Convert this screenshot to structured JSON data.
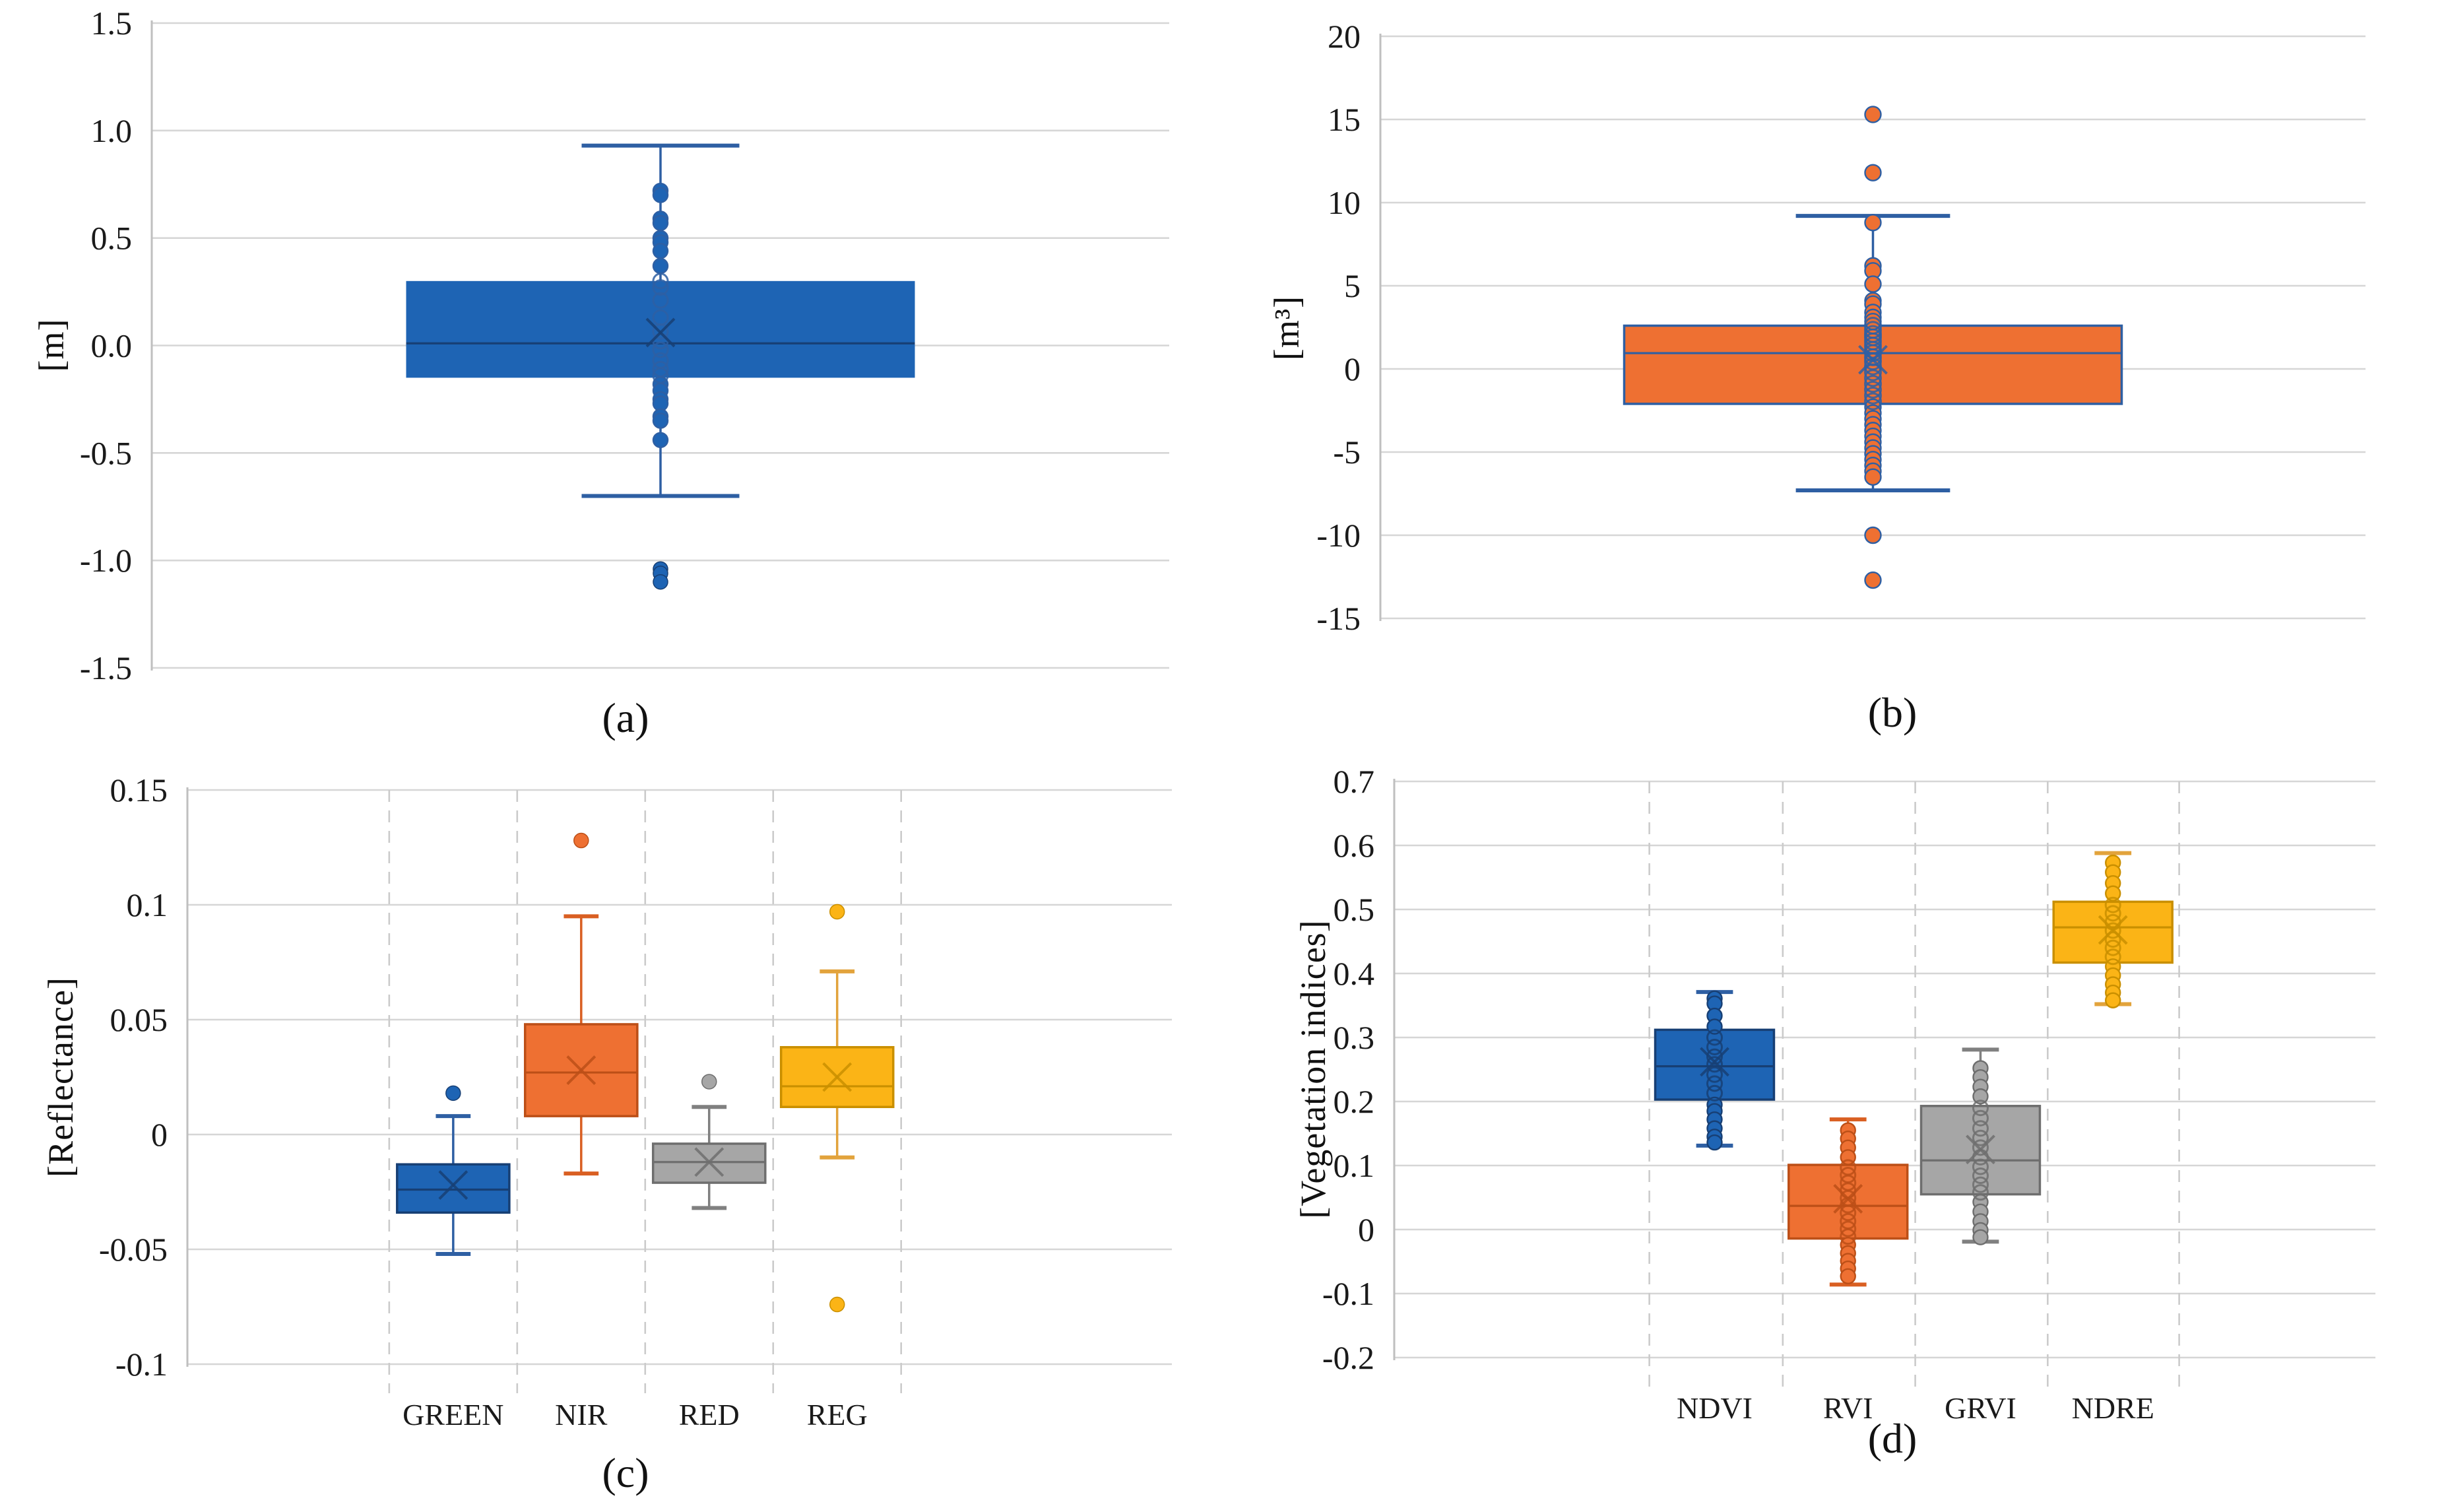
{
  "colors": {
    "blue": {
      "fill": "#1E64B4",
      "dark": "#173F74",
      "whisker": "#2E5FA3"
    },
    "orange": {
      "fill": "#EE7032",
      "dark": "#BC4F17",
      "whisker": "#D95F22"
    },
    "gray": {
      "fill": "#A6A6A6",
      "dark": "#6E6E6E",
      "whisker": "#808080"
    },
    "gold": {
      "fill": "#FBB416",
      "dark": "#C98F00",
      "whisker": "#E2A33C"
    },
    "gridline": "#D6D6D6",
    "axis_line": "#BFBFBF",
    "dashed_gridline": "#CBCBCB",
    "text": "#1A1A1A"
  },
  "chart_data": [
    {
      "type": "box",
      "panel": "a",
      "caption": "(a)",
      "ylabel": "[m]",
      "ylim": [
        -1.5,
        1.5
      ],
      "ytick_step": 0.5,
      "ytick_labels": [
        "1.5",
        "1.0",
        "0.5",
        "0.0",
        "-0.5",
        "-1.0",
        "-1.5"
      ],
      "grid": "horizontal",
      "legend": "none",
      "categories": [],
      "series": [
        {
          "name": "",
          "color": "blue",
          "whisker_color": "blue-ab",
          "box": {
            "q1": -0.15,
            "q3": 0.3,
            "median": 0.01,
            "mean": 0.06,
            "whisker_low": -0.7,
            "whisker_high": 0.93
          },
          "outliers": [
            -1.04,
            -1.06,
            -1.1
          ],
          "points": {
            "above": [
              0.72,
              0.7,
              0.59,
              0.57,
              0.5,
              0.48,
              0.44,
              0.37
            ],
            "inside": [
              0.3,
              0.27,
              0.21,
              0.13,
              0.065,
              0.02,
              -0.02,
              -0.07,
              -0.11,
              -0.14
            ],
            "below": [
              -0.18,
              -0.21,
              -0.25,
              -0.27,
              -0.33,
              -0.35,
              -0.44
            ]
          }
        }
      ]
    },
    {
      "type": "box",
      "panel": "b",
      "caption": "(b)",
      "ylabel": "[m³]",
      "ylim": [
        -15,
        20
      ],
      "ytick_step": 5,
      "ytick_labels": [
        "20",
        "15",
        "10",
        "5",
        "0",
        "-5",
        "-10",
        "-15"
      ],
      "grid": "horizontal",
      "legend": "none",
      "categories": [],
      "series": [
        {
          "name": "",
          "color": "orange",
          "box_stroke": "blue-ab",
          "whisker_color": "blue-ab",
          "box": {
            "q1": -2.1,
            "q3": 2.6,
            "median": 0.95,
            "mean": 0.55,
            "whisker_low": -7.3,
            "whisker_high": 9.2
          },
          "outliers": [
            15.3,
            11.8,
            -10.0,
            -12.7
          ],
          "points": {
            "above": [
              8.8,
              6.2,
              5.9,
              5.1,
              4.1,
              3.9,
              3.4,
              3.1,
              2.85
            ],
            "inside": [
              2.6,
              2.35,
              2.1,
              1.9,
              1.65,
              1.4,
              1.15,
              0.95,
              0.7,
              0.45,
              0.15,
              -0.2,
              -0.55,
              -0.9,
              -1.25,
              -1.6,
              -1.95
            ],
            "below": [
              -2.3,
              -2.65,
              -3.0,
              -3.35,
              -3.7,
              -4.05,
              -4.4,
              -4.75,
              -5.1,
              -5.45,
              -5.8,
              -6.15,
              -6.5
            ]
          }
        }
      ]
    },
    {
      "type": "box",
      "panel": "c",
      "caption": "(c)",
      "ylabel": "[Reflectance]",
      "ylim": [
        -0.1,
        0.15
      ],
      "ytick_step": 0.05,
      "ytick_labels": [
        "0.15",
        "0.1",
        "0.05",
        "0",
        "-0.05",
        "-0.1"
      ],
      "grid": "horizontal-plus-dashed-vertical",
      "legend": "none",
      "categories": [
        "GREEN",
        "NIR",
        "RED",
        "REG"
      ],
      "series": [
        {
          "name": "GREEN",
          "color": "blue",
          "box": {
            "q1": -0.034,
            "q3": -0.013,
            "median": -0.024,
            "mean": -0.022,
            "whisker_low": -0.052,
            "whisker_high": 0.008
          },
          "outliers": [
            0.018
          ],
          "points": {
            "above": [],
            "inside": [],
            "below": []
          }
        },
        {
          "name": "NIR",
          "color": "orange",
          "box": {
            "q1": 0.008,
            "q3": 0.048,
            "median": 0.027,
            "mean": 0.028,
            "whisker_low": -0.017,
            "whisker_high": 0.095
          },
          "outliers": [
            0.128
          ],
          "points": {
            "above": [],
            "inside": [],
            "below": []
          }
        },
        {
          "name": "RED",
          "color": "gray",
          "box": {
            "q1": -0.021,
            "q3": -0.004,
            "median": -0.012,
            "mean": -0.012,
            "whisker_low": -0.032,
            "whisker_high": 0.012
          },
          "outliers": [
            0.023
          ],
          "points": {
            "above": [],
            "inside": [],
            "below": []
          }
        },
        {
          "name": "REG",
          "color": "gold",
          "box": {
            "q1": 0.012,
            "q3": 0.038,
            "median": 0.021,
            "mean": 0.025,
            "whisker_low": -0.01,
            "whisker_high": 0.071
          },
          "outliers": [
            0.097,
            -0.074
          ],
          "points": {
            "above": [],
            "inside": [],
            "below": []
          }
        }
      ]
    },
    {
      "type": "box",
      "panel": "d",
      "caption": "(d)",
      "ylabel": "[Vegetation indices]",
      "ylim": [
        -0.2,
        0.7
      ],
      "ytick_step": 0.1,
      "ytick_labels": [
        "0.7",
        "0.6",
        "0.5",
        "0.4",
        "0.3",
        "0.2",
        "0.1",
        "0",
        "-0.1",
        "-0.2"
      ],
      "grid": "horizontal-plus-dashed-vertical",
      "legend": "none",
      "categories": [
        "NDVI",
        "RVI",
        "GRVI",
        "NDRE"
      ],
      "series": [
        {
          "name": "NDVI",
          "color": "blue",
          "box": {
            "q1": 0.203,
            "q3": 0.312,
            "median": 0.255,
            "mean": 0.262,
            "whisker_low": 0.131,
            "whisker_high": 0.371
          },
          "outliers": [],
          "points": {
            "above": [
              0.361,
              0.353,
              0.334,
              0.317
            ],
            "inside": [
              0.3,
              0.285,
              0.27,
              0.258,
              0.242,
              0.228,
              0.213
            ],
            "below": [
              0.195,
              0.185,
              0.172,
              0.158,
              0.145,
              0.136
            ]
          }
        },
        {
          "name": "RVI",
          "color": "orange",
          "box": {
            "q1": -0.014,
            "q3": 0.101,
            "median": 0.037,
            "mean": 0.048,
            "whisker_low": -0.086,
            "whisker_high": 0.172
          },
          "outliers": [],
          "points": {
            "above": [
              0.155,
              0.142,
              0.128,
              0.113
            ],
            "inside": [
              0.097,
              0.085,
              0.073,
              0.061,
              0.049,
              0.038,
              0.026,
              0.013,
              0.001,
              -0.011
            ],
            "below": [
              -0.024,
              -0.037,
              -0.049,
              -0.061,
              -0.073
            ]
          }
        },
        {
          "name": "GRVI",
          "color": "gray",
          "box": {
            "q1": 0.055,
            "q3": 0.193,
            "median": 0.108,
            "mean": 0.125,
            "whisker_low": -0.019,
            "whisker_high": 0.281
          },
          "outliers": [],
          "points": {
            "above": [
              0.252,
              0.238,
              0.223,
              0.208
            ],
            "inside": [
              0.19,
              0.174,
              0.158,
              0.143,
              0.128,
              0.113,
              0.098,
              0.084,
              0.07,
              0.058
            ],
            "below": [
              0.043,
              0.028,
              0.013,
              -0.001,
              -0.012
            ]
          }
        },
        {
          "name": "NDRE",
          "color": "gold",
          "box": {
            "q1": 0.417,
            "q3": 0.512,
            "median": 0.472,
            "mean": 0.468,
            "whisker_low": 0.352,
            "whisker_high": 0.588
          },
          "outliers": [],
          "points": {
            "above": [
              0.573,
              0.558,
              0.541,
              0.525
            ],
            "inside": [
              0.507,
              0.494,
              0.48,
              0.467,
              0.453,
              0.44,
              0.426
            ],
            "below": [
              0.411,
              0.397,
              0.383,
              0.37,
              0.358
            ]
          }
        }
      ]
    }
  ]
}
